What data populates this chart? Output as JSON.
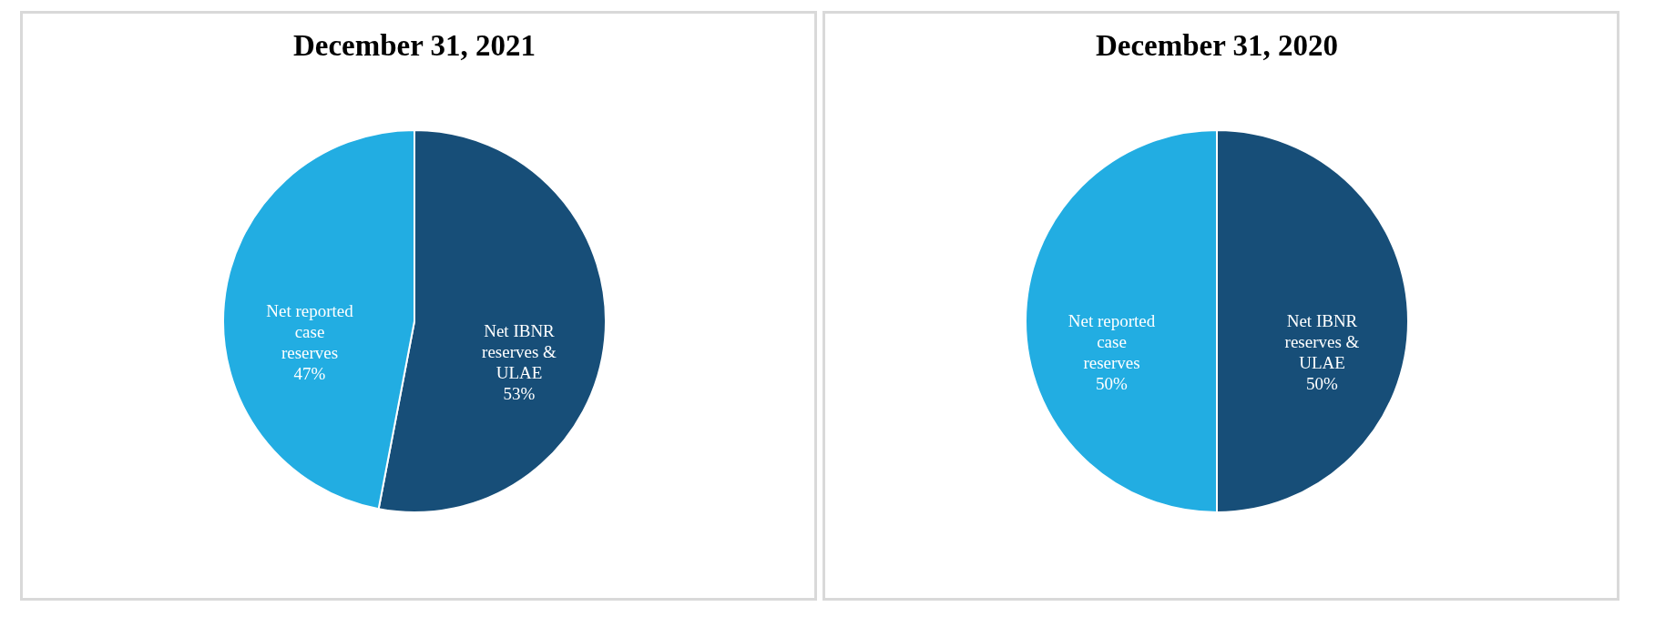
{
  "chart_data": [
    {
      "type": "pie",
      "title": "December 31, 2021",
      "categories": [
        "Net IBNR reserves & ULAE",
        "Net reported case reserves"
      ],
      "values": [
        53,
        47
      ],
      "colors": [
        "#174e78",
        "#22ade2"
      ],
      "value_labels": [
        "53%",
        "47%"
      ]
    },
    {
      "type": "pie",
      "title": "December 31, 2020",
      "categories": [
        "Net IBNR reserves & ULAE",
        "Net reported case reserves"
      ],
      "values": [
        50,
        50
      ],
      "colors": [
        "#174e78",
        "#22ade2"
      ],
      "value_labels": [
        "50%",
        "50%"
      ]
    }
  ]
}
